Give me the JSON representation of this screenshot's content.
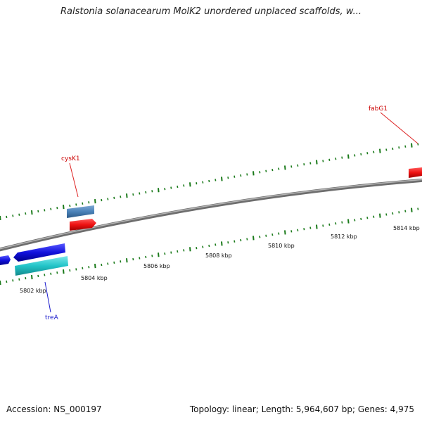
{
  "title": "Ralstonia solanacearum MolK2 unordered unplaced scaffolds, w...",
  "footer": {
    "accession": "Accession: NS_000197",
    "summary": "Topology: linear; Length: 5,964,607 bp; Genes: 4,975"
  },
  "scale_labels": [
    "5802 kbp",
    "5804 kbp",
    "5806 kbp",
    "5808 kbp",
    "5810 kbp",
    "5812 kbp",
    "5814 kbp"
  ],
  "gene_labels": {
    "cysK1": "cysK1",
    "fabG1": "fabG1",
    "treA": "treA"
  },
  "colors": {
    "backbone": "#808080",
    "tick": "#1a7a1a",
    "forward_gene": "#ee1111",
    "reverse_gene": "#1111dd",
    "cyan_gene": "#22c4c8",
    "steel_gene": "#4a82b8",
    "label_red": "#cc0000",
    "label_blue": "#1a1acc"
  }
}
